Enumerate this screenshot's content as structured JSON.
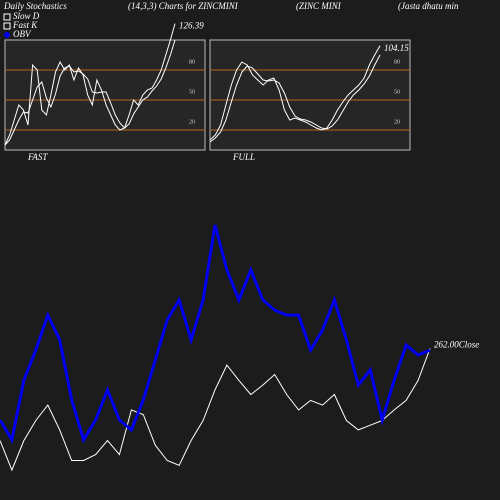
{
  "header": {
    "texts": [
      "Daily Stochastics",
      "(14,3,3) Charts for ZINCMINI",
      "(ZINC MINI",
      "(Jasta dhatu  min"
    ],
    "legend": [
      {
        "name": "Slow D",
        "color": "#ffffff"
      },
      {
        "name": "Fast K",
        "color": "#ffffff"
      },
      {
        "name": "OBV",
        "color": "#0000ee"
      }
    ]
  },
  "chart_data": [
    {
      "type": "line",
      "title": "FAST",
      "ylim": [
        0,
        110
      ],
      "yticks": [
        20,
        50,
        80
      ],
      "grid": true,
      "grid_color": "#b5651d",
      "series": [
        {
          "name": "Fast K",
          "color": "#ffffff",
          "values": [
            5,
            15,
            30,
            45,
            40,
            25,
            85,
            80,
            40,
            35,
            55,
            78,
            88,
            80,
            85,
            70,
            82,
            75,
            55,
            45,
            70,
            60,
            45,
            35,
            25,
            20,
            22,
            35,
            50,
            45,
            55,
            60,
            62,
            70,
            80,
            95,
            110,
            126.39
          ]
        },
        {
          "name": "Slow D",
          "color": "#ffffff",
          "values": [
            5,
            10,
            20,
            30,
            38,
            37,
            50,
            63,
            68,
            52,
            43,
            56,
            74,
            82,
            84,
            78,
            79,
            76,
            71,
            58,
            57,
            58,
            58,
            47,
            35,
            27,
            22,
            26,
            36,
            43,
            50,
            53,
            59,
            64,
            71,
            82,
            95,
            110
          ]
        }
      ]
    },
    {
      "type": "line",
      "title": "FULL",
      "ylim": [
        0,
        110
      ],
      "yticks": [
        20,
        50,
        80
      ],
      "grid": true,
      "grid_color": "#b5651d",
      "series": [
        {
          "name": "Fast K",
          "color": "#ffffff",
          "values": [
            10,
            15,
            25,
            45,
            65,
            80,
            88,
            85,
            75,
            70,
            65,
            70,
            72,
            60,
            40,
            30,
            32,
            30,
            28,
            25,
            22,
            20,
            22,
            30,
            40,
            48,
            55,
            60,
            65,
            72,
            85,
            95,
            104.15
          ]
        },
        {
          "name": "Slow D",
          "color": "#ffffff",
          "values": [
            8,
            12,
            18,
            30,
            48,
            65,
            78,
            84,
            82,
            76,
            70,
            69,
            70,
            67,
            57,
            43,
            34,
            31,
            30,
            28,
            25,
            22,
            21,
            24,
            30,
            39,
            48,
            55,
            60,
            66,
            74,
            85,
            95
          ]
        }
      ]
    },
    {
      "type": "line",
      "ylim": [
        250,
        278
      ],
      "y2lim": [
        0,
        100
      ],
      "series": [
        {
          "name": "Close",
          "color": "#ffffff",
          "annotation": "262.00Close",
          "values": [
            254.2,
            251.7,
            254.2,
            255.9,
            257.2,
            255.1,
            252.5,
            252.5,
            253.0,
            254.2,
            253.0,
            256.8,
            256.4,
            253.8,
            252.5,
            252.1,
            254.2,
            255.9,
            258.5,
            260.6,
            259.3,
            258.1,
            258.9,
            259.8,
            258.1,
            256.8,
            257.6,
            257.2,
            258.1,
            255.9,
            255.1,
            255.5,
            255.9,
            256.8,
            257.6,
            259.3,
            262
          ]
        },
        {
          "name": "OBV",
          "color": "#0000ee",
          "axis": "y2",
          "values": [
            21.2,
            15.2,
            33.3,
            42.4,
            53.0,
            45.5,
            27.3,
            15.2,
            21.2,
            30.3,
            21.2,
            18.2,
            27.3,
            39.4,
            51.5,
            57.6,
            45.5,
            57.6,
            80.3,
            66.7,
            57.6,
            66.7,
            57.6,
            54.5,
            53.0,
            53.0,
            42.4,
            48.5,
            57.6,
            45.5,
            31.8,
            36.4,
            21.2,
            33.3,
            43.9,
            40.9,
            42.4
          ]
        }
      ]
    }
  ]
}
